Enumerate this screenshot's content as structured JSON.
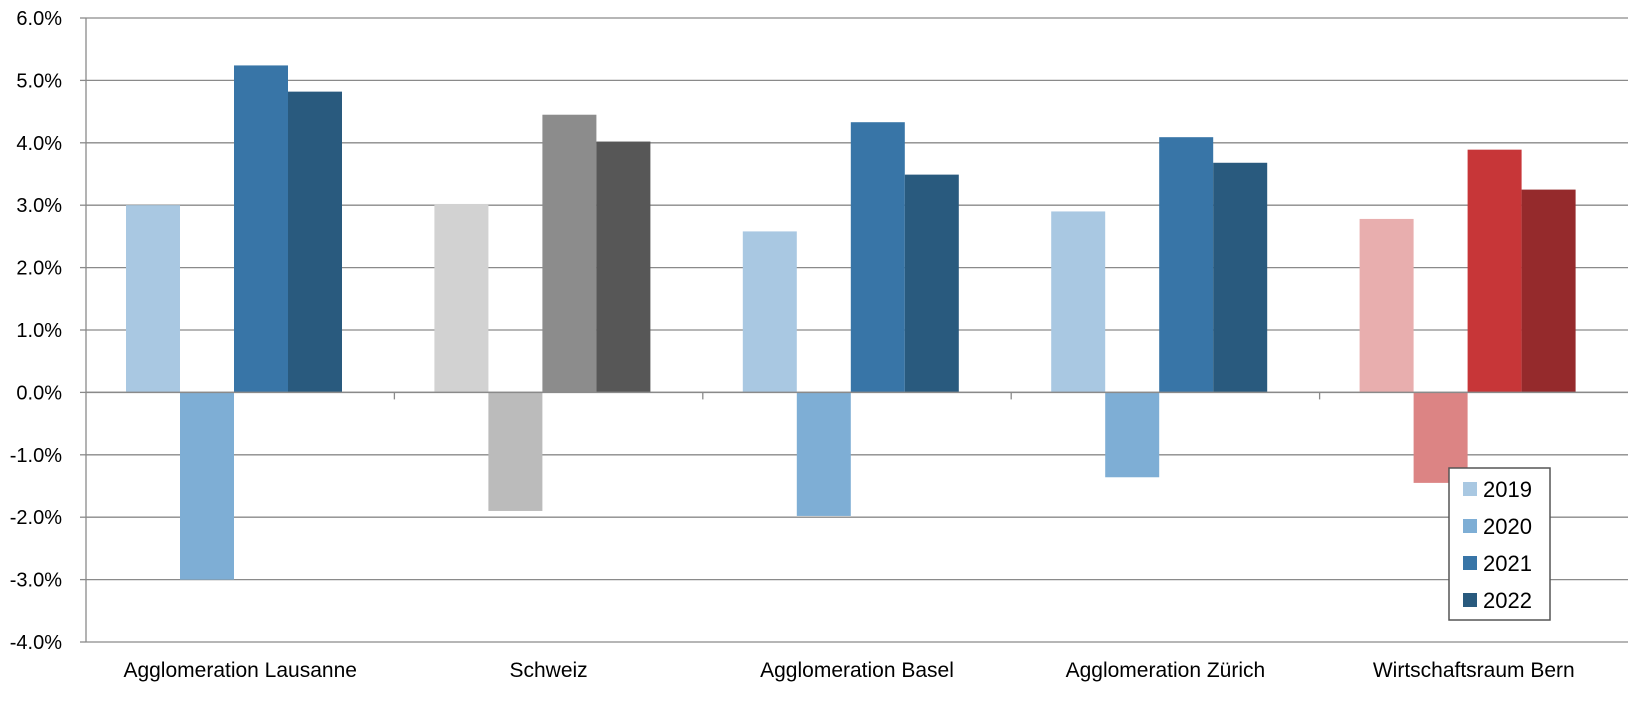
{
  "chart_data": {
    "type": "bar",
    "categories": [
      "Agglomeration Lausanne",
      "Schweiz",
      "Agglomeration Basel",
      "Agglomeration Zürich",
      "Wirtschaftsraum Bern"
    ],
    "series": [
      {
        "name": "2019",
        "values": [
          3.0,
          3.02,
          2.58,
          2.9,
          2.78
        ]
      },
      {
        "name": "2020",
        "values": [
          -3.0,
          -1.9,
          -1.98,
          -1.36,
          -1.45
        ]
      },
      {
        "name": "2021",
        "values": [
          5.24,
          4.45,
          4.33,
          4.09,
          3.89
        ]
      },
      {
        "name": "2022",
        "values": [
          4.82,
          4.02,
          3.49,
          3.68,
          3.25
        ]
      }
    ],
    "ylim": [
      -4.0,
      6.0
    ],
    "yticks": [
      6.0,
      5.0,
      4.0,
      3.0,
      2.0,
      1.0,
      0.0,
      -1.0,
      -2.0,
      -3.0,
      -4.0
    ],
    "ytick_labels": [
      "6.0%",
      "5.0%",
      "4.0%",
      "3.0%",
      "2.0%",
      "1.0%",
      "0.0%",
      "-1.0%",
      "-2.0%",
      "-3.0%",
      "-4.0%"
    ],
    "grid": true,
    "legend_position": "bottom-right",
    "colors": {
      "default": [
        "#a9c8e2",
        "#7eaed5",
        "#3875a7",
        "#295a7e"
      ],
      "Schweiz": [
        "#d2d2d2",
        "#bbbbbb",
        "#8c8c8c",
        "#575757"
      ],
      "Wirtschaftsraum Bern": [
        "#e8aeae",
        "#dc8484",
        "#c73638",
        "#952a2c"
      ]
    }
  }
}
